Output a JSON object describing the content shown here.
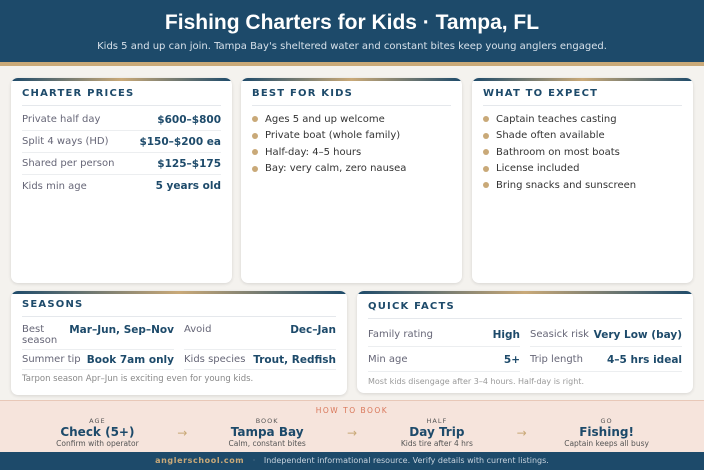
{
  "header": {
    "title": "Fishing Charters for Kids · Tampa, FL",
    "subtitle": "Kids 5 and up can join. Tampa Bay's sheltered water and constant bites keep young anglers engaged."
  },
  "prices": {
    "title": "CHARTER PRICES",
    "rows": [
      {
        "label": "Private half day",
        "value": "$600–$800"
      },
      {
        "label": "Split 4 ways (HD)",
        "value": "$150–$200 ea"
      },
      {
        "label": "Shared per person",
        "value": "$125–$175"
      },
      {
        "label": "Kids min age",
        "value": "5 years old"
      }
    ]
  },
  "best": {
    "title": "BEST FOR KIDS",
    "items": [
      "Ages 5 and up welcome",
      "Private boat (whole family)",
      "Half-day: 4–5 hours",
      "Bay: very calm, zero nausea"
    ]
  },
  "expect": {
    "title": "WHAT TO EXPECT",
    "items": [
      "Captain teaches casting",
      "Shade often available",
      "Bathroom on most boats",
      "License included",
      "Bring snacks and sunscreen"
    ]
  },
  "seasons": {
    "title": "SEASONS",
    "cells": [
      {
        "label": "Best season",
        "value": "Mar–Jun, Sep–Nov"
      },
      {
        "label": "Avoid",
        "value": "Dec–Jan"
      },
      {
        "label": "Summer tip",
        "value": "Book 7am only"
      },
      {
        "label": "Kids species",
        "value": "Trout, Redfish"
      }
    ],
    "note": "Tarpon season Apr–Jun is exciting even for young kids."
  },
  "facts": {
    "title": "QUICK FACTS",
    "cells": [
      {
        "label": "Family rating",
        "value": "High"
      },
      {
        "label": "Seasick risk",
        "value": "Very Low (bay)"
      },
      {
        "label": "Min age",
        "value": "5+"
      },
      {
        "label": "Trip length",
        "value": "4–5 hrs ideal"
      }
    ],
    "note": "Most kids disengage after 3–4 hours. Half-day is right."
  },
  "how": {
    "title": "HOW TO BOOK",
    "steps": [
      {
        "kicker": "AGE",
        "main": "Check (5+)",
        "sub": "Confirm with operator"
      },
      {
        "kicker": "BOOK",
        "main": "Tampa Bay",
        "sub": "Calm, constant bites"
      },
      {
        "kicker": "HALF",
        "main": "Day Trip",
        "sub": "Kids tire after 4 hrs"
      },
      {
        "kicker": "GO",
        "main": "Fishing!",
        "sub": "Captain keeps all busy"
      }
    ],
    "arrow": "→"
  },
  "footer": {
    "site": "anglerschool.com",
    "sep": "·",
    "text": "Independent informational resource. Verify details with current listings."
  },
  "colors": {
    "navy": "#1d4a6a",
    "gold": "#c9a978",
    "band": "#f6e4dc"
  }
}
